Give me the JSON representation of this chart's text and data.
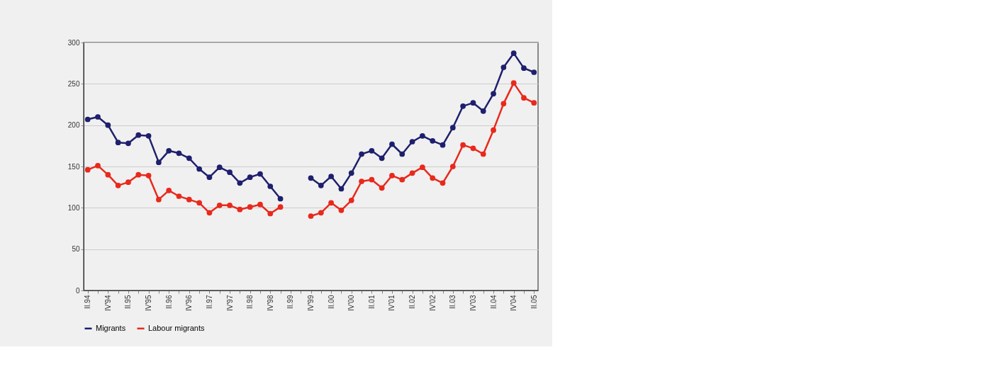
{
  "chart_data": {
    "type": "line",
    "categories": [
      "II.94",
      null,
      "IV'94",
      null,
      "II.95",
      null,
      "IV'95",
      null,
      "II.96",
      null,
      "IV'96",
      null,
      "II.97",
      null,
      "IV'97",
      null,
      "II.98",
      null,
      "IV'98",
      null,
      "II.99",
      null,
      "IV'99",
      null,
      "II.00",
      null,
      "IV'00",
      null,
      "II.01",
      null,
      "IV'01",
      null,
      "II.02",
      null,
      "IV'02",
      null,
      "II.03",
      null,
      "IV'03",
      null,
      "II.04",
      null,
      "IV'04",
      null,
      "II.05"
    ],
    "series": [
      {
        "name": "Migrants",
        "color": "#1f1f6e",
        "values": [
          207,
          210,
          200,
          179,
          178,
          188,
          187,
          155,
          169,
          166,
          160,
          147,
          137,
          149,
          143,
          130,
          137,
          141,
          126,
          111,
          null,
          null,
          136,
          127,
          138,
          123,
          142,
          165,
          169,
          160,
          177,
          165,
          180,
          187,
          181,
          176,
          197,
          223,
          227,
          217,
          238,
          270,
          287,
          269,
          264
        ]
      },
      {
        "name": "Labour migrants",
        "color": "#e8291c",
        "values": [
          146,
          151,
          140,
          127,
          131,
          140,
          139,
          110,
          121,
          114,
          110,
          106,
          94,
          103,
          103,
          98,
          101,
          104,
          93,
          101,
          null,
          null,
          90,
          94,
          106,
          97,
          109,
          132,
          134,
          124,
          139,
          134,
          142,
          149,
          136,
          130,
          150,
          176,
          172,
          165,
          194,
          226,
          251,
          233,
          227
        ]
      }
    ],
    "ylim": [
      0,
      300
    ],
    "yticks": [
      0,
      50,
      100,
      150,
      200,
      250,
      300
    ],
    "grid": "y",
    "legend": "bottom",
    "marker": "circle",
    "line_style": "solid"
  }
}
